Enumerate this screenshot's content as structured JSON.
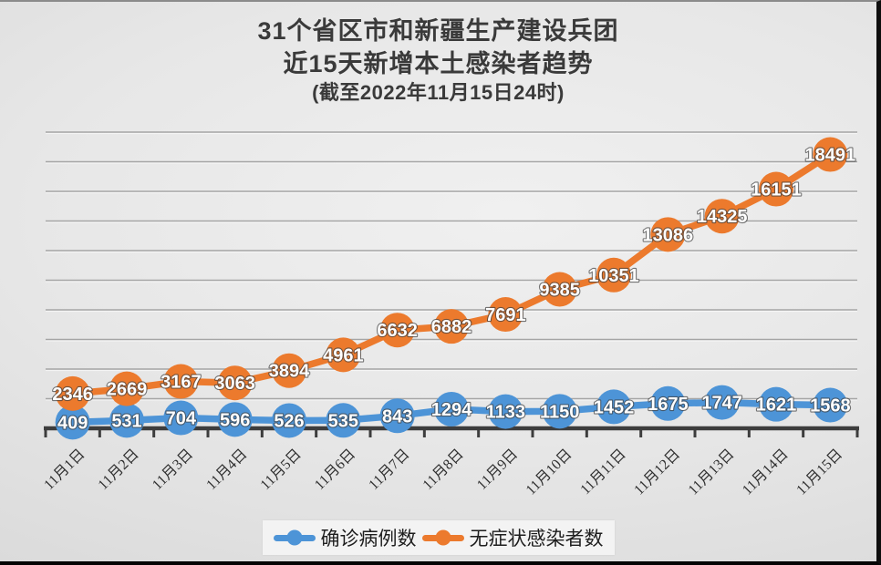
{
  "chart_data": {
    "type": "line",
    "title_lines": [
      "31个省区市和新疆生产建设兵团",
      "近15天新增本土感染者趋势",
      "(截至2022年11月15日24时)"
    ],
    "categories": [
      "11月1日",
      "11月2日",
      "11月3日",
      "11月4日",
      "11月5日",
      "11月6日",
      "11月7日",
      "11月8日",
      "11月9日",
      "11月10日",
      "11月11日",
      "11月12日",
      "11月13日",
      "11月14日",
      "11月15日"
    ],
    "series": [
      {
        "name": "确诊病例数",
        "color": "#4D94D7",
        "marker": "circle",
        "values": [
          409,
          531,
          704,
          596,
          526,
          535,
          843,
          1294,
          1133,
          1150,
          1452,
          1675,
          1747,
          1621,
          1568
        ]
      },
      {
        "name": "无症状感染者数",
        "color": "#EC7A2D",
        "marker": "circle",
        "values": [
          2346,
          2669,
          3167,
          3063,
          3894,
          4961,
          6632,
          6882,
          7691,
          9385,
          10351,
          13086,
          14325,
          16151,
          18491
        ]
      }
    ],
    "ylim": [
      0,
      20000
    ],
    "y_gridline_interval": 2000,
    "grid": true,
    "y_axis_labels_visible": false,
    "data_labels": true,
    "data_label_color": "#ffffff",
    "x_tick_rotation": -45,
    "legend_position": "bottom"
  }
}
